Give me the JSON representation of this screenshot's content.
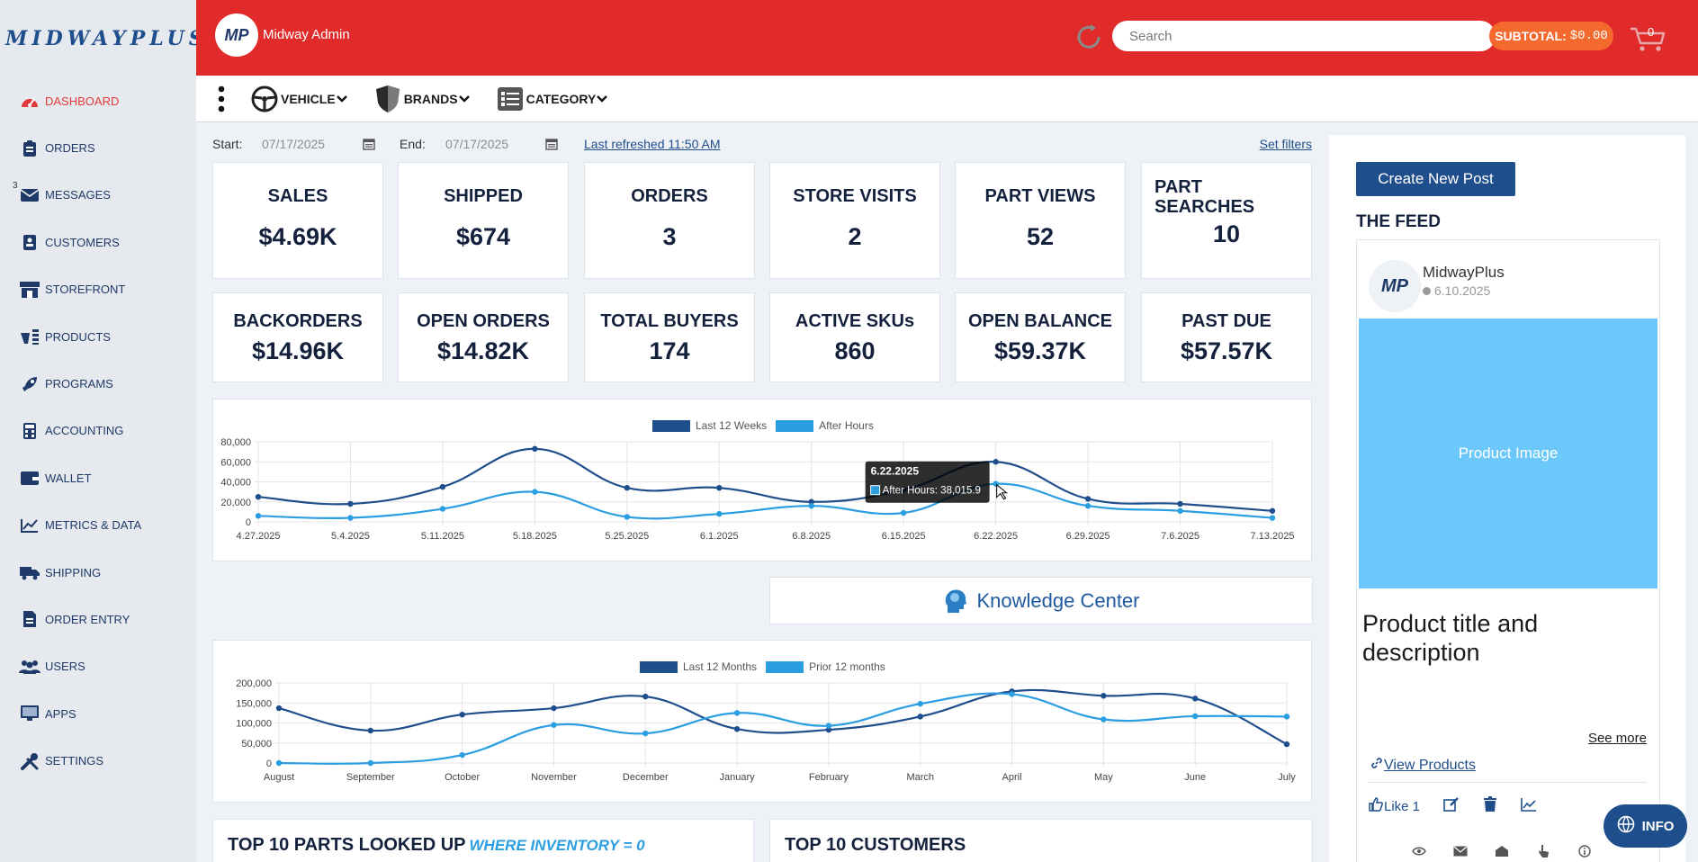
{
  "brand": {
    "logo_text": "MIDWAYPLUS",
    "avatar_initials": "MP"
  },
  "header": {
    "user_name": "Midway Admin",
    "search_placeholder": "Search",
    "subtotal_label": "SUBTOTAL:",
    "subtotal_amount": "$0.00",
    "cart_count": "0"
  },
  "sidebar": {
    "messages_badge": "3",
    "items": [
      {
        "label": "DASHBOARD",
        "icon": "speedometer-icon",
        "active": true
      },
      {
        "label": "ORDERS",
        "icon": "clipboard-icon"
      },
      {
        "label": "MESSAGES",
        "icon": "envelope-icon"
      },
      {
        "label": "CUSTOMERS",
        "icon": "id-badge-icon"
      },
      {
        "label": "STOREFRONT",
        "icon": "store-icon"
      },
      {
        "label": "PRODUCTS",
        "icon": "parts-icon"
      },
      {
        "label": "PROGRAMS",
        "icon": "rocket-icon"
      },
      {
        "label": "ACCOUNTING",
        "icon": "calculator-icon"
      },
      {
        "label": "WALLET",
        "icon": "wallet-icon"
      },
      {
        "label": "METRICS & DATA",
        "icon": "chart-line-icon"
      },
      {
        "label": "SHIPPING",
        "icon": "truck-icon"
      },
      {
        "label": "ORDER ENTRY",
        "icon": "file-entry-icon"
      },
      {
        "label": "USERS",
        "icon": "users-icon"
      },
      {
        "label": "APPS",
        "icon": "monitor-icon"
      },
      {
        "label": "SETTINGS",
        "icon": "tools-icon"
      }
    ]
  },
  "filters": {
    "vehicle": "VEHICLE",
    "brands": "BRANDS",
    "category": "CATEGORY",
    "start_label": "Start:",
    "start_value": "07/17/2025",
    "end_label": "End:",
    "end_value": "07/17/2025",
    "last_refreshed": "Last refreshed 11:50 AM",
    "set_filters": "Set filters"
  },
  "kpis_row1": [
    {
      "label": "SALES",
      "value": "$4.69K"
    },
    {
      "label": "SHIPPED",
      "value": "$674"
    },
    {
      "label": "ORDERS",
      "value": "3"
    },
    {
      "label": "STORE VISITS",
      "value": "2"
    },
    {
      "label": "PART VIEWS",
      "value": "52"
    },
    {
      "label": "PART SEARCHES",
      "value": "10"
    }
  ],
  "kpis_row2": [
    {
      "label": "BACKORDERS",
      "value": "$14.96K"
    },
    {
      "label": "OPEN ORDERS",
      "value": "$14.82K"
    },
    {
      "label": "TOTAL BUYERS",
      "value": "174"
    },
    {
      "label": "ACTIVE SKUs",
      "value": "860"
    },
    {
      "label": "OPEN BALANCE",
      "value": "$59.37K"
    },
    {
      "label": "PAST DUE",
      "value": "$57.57K"
    }
  ],
  "chart_data": [
    {
      "type": "line",
      "categories": [
        "4.27.2025",
        "5.4.2025",
        "5.11.2025",
        "5.18.2025",
        "5.25.2025",
        "6.1.2025",
        "6.8.2025",
        "6.15.2025",
        "6.22.2025",
        "6.29.2025",
        "7.6.2025",
        "7.13.2025"
      ],
      "series": [
        {
          "name": "Last 12 Weeks",
          "color": "#1f4e8c",
          "values": [
            25000,
            18000,
            35000,
            73000,
            34000,
            34000,
            20000,
            32000,
            60000,
            23000,
            18000,
            11000
          ]
        },
        {
          "name": "After Hours",
          "color": "#2a9ee0",
          "values": [
            6000,
            4000,
            13000,
            30000,
            5000,
            8000,
            16000,
            9000,
            38015.9,
            16000,
            11000,
            4000
          ]
        }
      ],
      "ylim": [
        0,
        80000
      ],
      "yticks": [
        "80,000",
        "60,000",
        "40,000",
        "20,000",
        "0"
      ],
      "tooltip": {
        "title": "6.22.2025",
        "line": "After Hours: 38,015.9"
      }
    },
    {
      "type": "line",
      "categories": [
        "August",
        "September",
        "October",
        "November",
        "December",
        "January",
        "February",
        "March",
        "April",
        "May",
        "June",
        "July"
      ],
      "series": [
        {
          "name": "Last 12 Months",
          "color": "#1f4e8c",
          "values": [
            137000,
            81000,
            121000,
            137000,
            166000,
            85000,
            83000,
            116000,
            179000,
            168000,
            161000,
            47000
          ]
        },
        {
          "name": "Prior 12 months",
          "color": "#2a9ee0",
          "values": [
            0,
            0,
            20000,
            95000,
            74000,
            125000,
            93000,
            148000,
            172000,
            109000,
            117000,
            116000
          ]
        }
      ],
      "ylim": [
        0,
        200000
      ],
      "yticks": [
        "200,000",
        "150,000",
        "100,000",
        "50,000",
        "0"
      ]
    }
  ],
  "knowledge_center": "Knowledge Center",
  "bottom": {
    "top_parts_title": "TOP 10 PARTS LOOKED UP",
    "top_parts_sub": "WHERE INVENTORY = 0",
    "top_customers_title": "TOP 10 CUSTOMERS"
  },
  "feed": {
    "create_button": "Create New Post",
    "title": "THE FEED",
    "post": {
      "author": "MidwayPlus",
      "date": "6.10.2025",
      "image_label": "Product Image",
      "title": "Product title and description",
      "see_more": "See more",
      "view_products": "View Products",
      "like_label": "Like 1"
    }
  },
  "info_button": "INFO",
  "colors": {
    "header_red": "#e12b2b",
    "brand_blue": "#1f4e8c",
    "accent_blue": "#2a9ee0",
    "subtotal_orange": "#f46a2e"
  }
}
